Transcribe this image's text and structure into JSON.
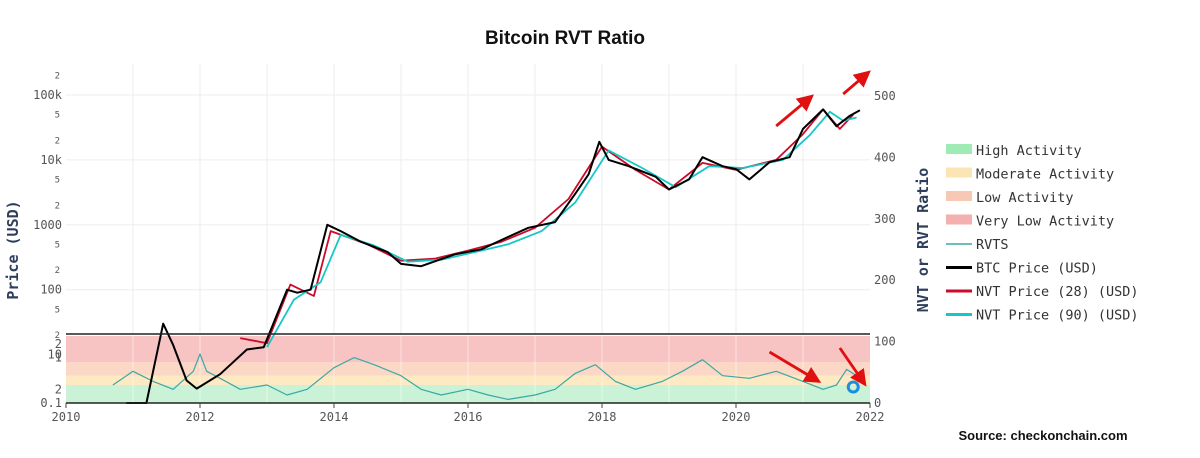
{
  "chart_data": {
    "type": "line",
    "title": "Bitcoin RVT Ratio",
    "source": "Source: checkonchain.com",
    "x_ticks": [
      "2010",
      "2012",
      "2014",
      "2016",
      "2018",
      "2020",
      "2022"
    ],
    "x_range": [
      2010,
      2022
    ],
    "y_left_label": "Price (USD)",
    "y_left_scale": "log",
    "y_left_range": [
      2,
      300000
    ],
    "y_left_major_ticks": [
      "10",
      "100",
      "1000",
      "10k",
      "100k"
    ],
    "y_left_minor_ticks": [
      "2",
      "5",
      "2",
      "5",
      "2",
      "5",
      "2",
      "5",
      "2",
      "5"
    ],
    "y_right_label": "NVT or RVT Ratio",
    "y_right_range": [
      0,
      550
    ],
    "y_right_ticks": [
      "0",
      "100",
      "200",
      "300",
      "400",
      "500"
    ],
    "y_lower_scale": "log",
    "y_lower_ticks": [
      "0.1",
      "2",
      "1",
      "2"
    ],
    "y_lower_range": [
      0.1,
      3
    ],
    "bands": [
      {
        "name": "High Activity",
        "from": 0.1,
        "to": 0.25,
        "color": "#c9f2d6"
      },
      {
        "name": "Moderate Activity",
        "from": 0.25,
        "to": 0.4,
        "color": "#fde9c2"
      },
      {
        "name": "Low Activity",
        "from": 0.4,
        "to": 0.8,
        "color": "#fbd7c6"
      },
      {
        "name": "Very Low Activity",
        "from": 0.8,
        "to": 3,
        "color": "#f7c3c3"
      }
    ],
    "legend": [
      {
        "label": "High Activity",
        "kind": "band",
        "color": "#8ee6a8"
      },
      {
        "label": "Moderate Activity",
        "kind": "band",
        "color": "#fbe0a8"
      },
      {
        "label": "Low Activity",
        "kind": "band",
        "color": "#f6c0a8"
      },
      {
        "label": "Very Low Activity",
        "kind": "band",
        "color": "#f2a1a1"
      },
      {
        "label": "RVTS",
        "kind": "line",
        "color": "#3aa9a3"
      },
      {
        "label": "BTC Price (USD)",
        "kind": "line",
        "color": "#000000"
      },
      {
        "label": "NVT Price (28) (USD)",
        "kind": "line",
        "color": "#cc0a2a"
      },
      {
        "label": "NVT Price (90) (USD)",
        "kind": "line",
        "color": "#17c7c7"
      }
    ],
    "series": [
      {
        "name": "BTC Price (USD)",
        "color": "#000000",
        "x": [
          2010.9,
          2011.2,
          2011.45,
          2011.6,
          2011.8,
          2011.95,
          2012.3,
          2012.7,
          2012.95,
          2013.3,
          2013.45,
          2013.65,
          2013.9,
          2014.1,
          2014.4,
          2014.8,
          2015.0,
          2015.3,
          2015.8,
          2016.2,
          2016.6,
          2016.9,
          2017.3,
          2017.6,
          2017.8,
          2017.96,
          2018.1,
          2018.4,
          2018.8,
          2019.0,
          2019.3,
          2019.5,
          2019.8,
          2020.0,
          2020.2,
          2020.5,
          2020.8,
          2021.0,
          2021.3,
          2021.5,
          2021.7,
          2021.85
        ],
        "values": [
          0.1,
          0.9,
          30,
          14,
          4,
          3,
          5,
          12,
          13,
          100,
          90,
          100,
          1000,
          800,
          550,
          380,
          250,
          230,
          350,
          420,
          650,
          900,
          1100,
          3000,
          6000,
          19000,
          10000,
          8000,
          5500,
          3500,
          5000,
          11000,
          8000,
          7200,
          5000,
          9200,
          11000,
          30000,
          60000,
          33000,
          48000,
          58000
        ]
      },
      {
        "name": "NVT Price (28) (USD)",
        "color": "#cc0a2a",
        "x": [
          2012.6,
          2013.0,
          2013.35,
          2013.7,
          2013.95,
          2014.5,
          2015.0,
          2015.5,
          2016.0,
          2016.5,
          2017.0,
          2017.5,
          2018.0,
          2018.5,
          2019.0,
          2019.5,
          2020.0,
          2020.6,
          2021.0,
          2021.3,
          2021.55,
          2021.75
        ],
        "values": [
          18,
          15,
          120,
          80,
          800,
          500,
          280,
          300,
          400,
          550,
          900,
          2500,
          16000,
          7000,
          3500,
          9000,
          7000,
          10000,
          25000,
          60000,
          30000,
          50000
        ]
      },
      {
        "name": "NVT Price (90) (USD)",
        "color": "#17c7c7",
        "x": [
          2013.0,
          2013.4,
          2013.8,
          2014.1,
          2014.6,
          2015.1,
          2015.6,
          2016.1,
          2016.6,
          2017.1,
          2017.6,
          2018.1,
          2018.6,
          2019.1,
          2019.6,
          2020.1,
          2020.7,
          2021.1,
          2021.4,
          2021.6,
          2021.8
        ],
        "values": [
          13,
          70,
          130,
          700,
          480,
          270,
          290,
          380,
          500,
          800,
          2200,
          14000,
          7500,
          3800,
          8000,
          7500,
          10000,
          24000,
          55000,
          40000,
          45000
        ]
      },
      {
        "name": "RVTS",
        "color": "#3aa9a3",
        "x": [
          2010.7,
          2011.0,
          2011.3,
          2011.6,
          2011.9,
          2012.0,
          2012.1,
          2012.3,
          2012.6,
          2013.0,
          2013.3,
          2013.6,
          2014.0,
          2014.3,
          2014.6,
          2015.0,
          2015.3,
          2015.6,
          2016.0,
          2016.3,
          2016.6,
          2017.0,
          2017.3,
          2017.6,
          2017.9,
          2018.2,
          2018.5,
          2018.9,
          2019.2,
          2019.5,
          2019.8,
          2020.2,
          2020.6,
          2021.0,
          2021.3,
          2021.5,
          2021.65,
          2021.8
        ],
        "values": [
          0.25,
          0.5,
          0.3,
          0.2,
          0.5,
          1.2,
          0.5,
          0.35,
          0.2,
          0.25,
          0.15,
          0.2,
          0.6,
          1.0,
          0.7,
          0.4,
          0.2,
          0.15,
          0.2,
          0.15,
          0.12,
          0.15,
          0.2,
          0.45,
          0.7,
          0.3,
          0.2,
          0.3,
          0.5,
          0.9,
          0.4,
          0.35,
          0.5,
          0.3,
          0.2,
          0.25,
          0.55,
          0.4
        ]
      }
    ],
    "annotations": [
      "red-arrow-top-1",
      "red-arrow-top-2",
      "red-arrow-bottom-1",
      "red-arrow-bottom-2",
      "blue-circle-marker"
    ]
  }
}
